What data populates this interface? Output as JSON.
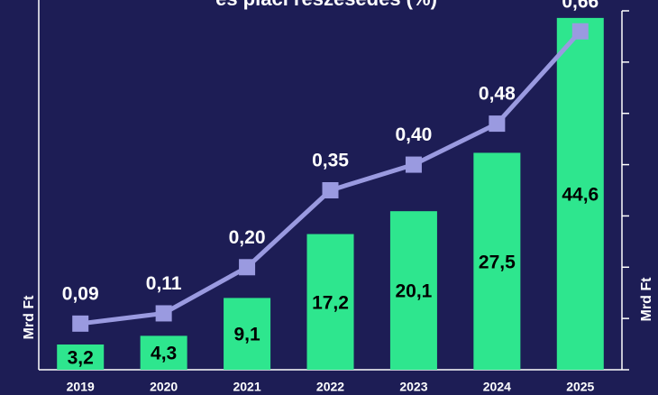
{
  "chart_data": {
    "type": "bar_line",
    "title": "és piaci részesedés (%)",
    "ylabel": "Mrd Ft",
    "y2label": "Mrd Ft",
    "categories": [
      "2019",
      "2020",
      "2021",
      "2022",
      "2023",
      "2024",
      "2025"
    ],
    "series": [
      {
        "type": "bar",
        "color": "#2ee68e",
        "values": [
          3.2,
          4.3,
          9.1,
          17.2,
          20.1,
          27.5,
          44.6
        ],
        "value_labels": [
          "3,2",
          "4,3",
          "9,1",
          "17,2",
          "20,1",
          "27,5",
          "44,6"
        ]
      },
      {
        "type": "line",
        "axis": "y2",
        "color": "#9a9ae0",
        "values": [
          0.09,
          0.11,
          0.2,
          0.35,
          0.4,
          0.48,
          0.66
        ],
        "value_labels": [
          "0,09",
          "0,11",
          "0,20",
          "0,35",
          "0,40",
          "0,48",
          "0,66"
        ]
      }
    ],
    "ylim": [
      0,
      45.5
    ],
    "y2lim": [
      0,
      0.7
    ],
    "y2ticks": [
      0,
      0.1,
      0.2,
      0.3,
      0.4,
      0.5,
      0.6,
      0.7
    ]
  }
}
